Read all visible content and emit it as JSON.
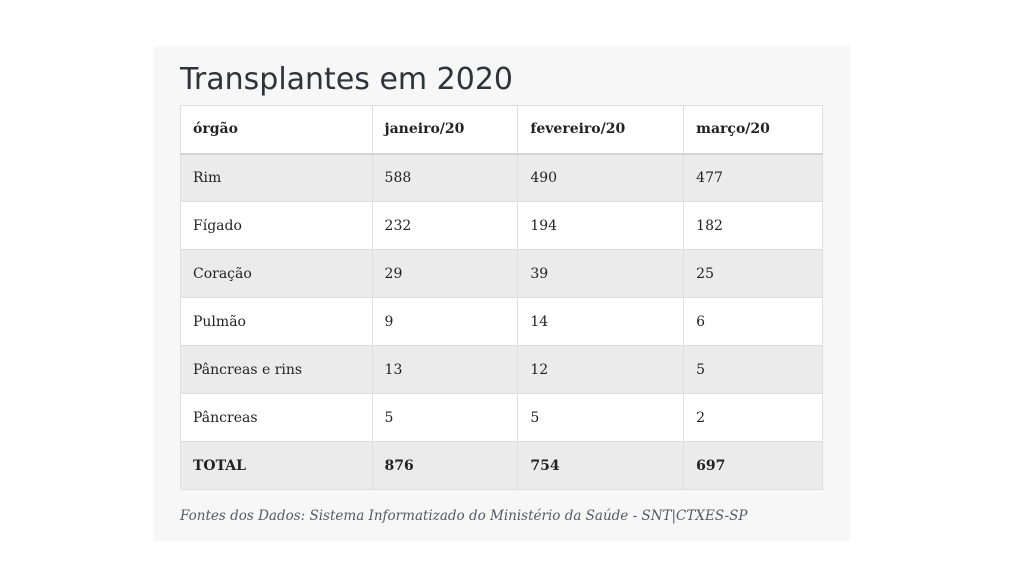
{
  "title": "Transplantes em 2020",
  "table": {
    "headers": [
      "órgão",
      "janeiro/20",
      "fevereiro/20",
      "março/20"
    ],
    "rows": [
      [
        "Rim",
        "588",
        "490",
        "477"
      ],
      [
        "Fígado",
        "232",
        "194",
        "182"
      ],
      [
        "Coração",
        "29",
        "39",
        "25"
      ],
      [
        "Pulmão",
        "9",
        "14",
        "6"
      ],
      [
        "Pâncreas e rins",
        "13",
        "12",
        "5"
      ],
      [
        "Pâncreas",
        "5",
        "5",
        "2"
      ],
      [
        "TOTAL",
        "876",
        "754",
        "697"
      ]
    ]
  },
  "source": "Fontes dos Dados: Sistema Informatizado do Ministério da Saúde - SNT|CTXES-SP"
}
